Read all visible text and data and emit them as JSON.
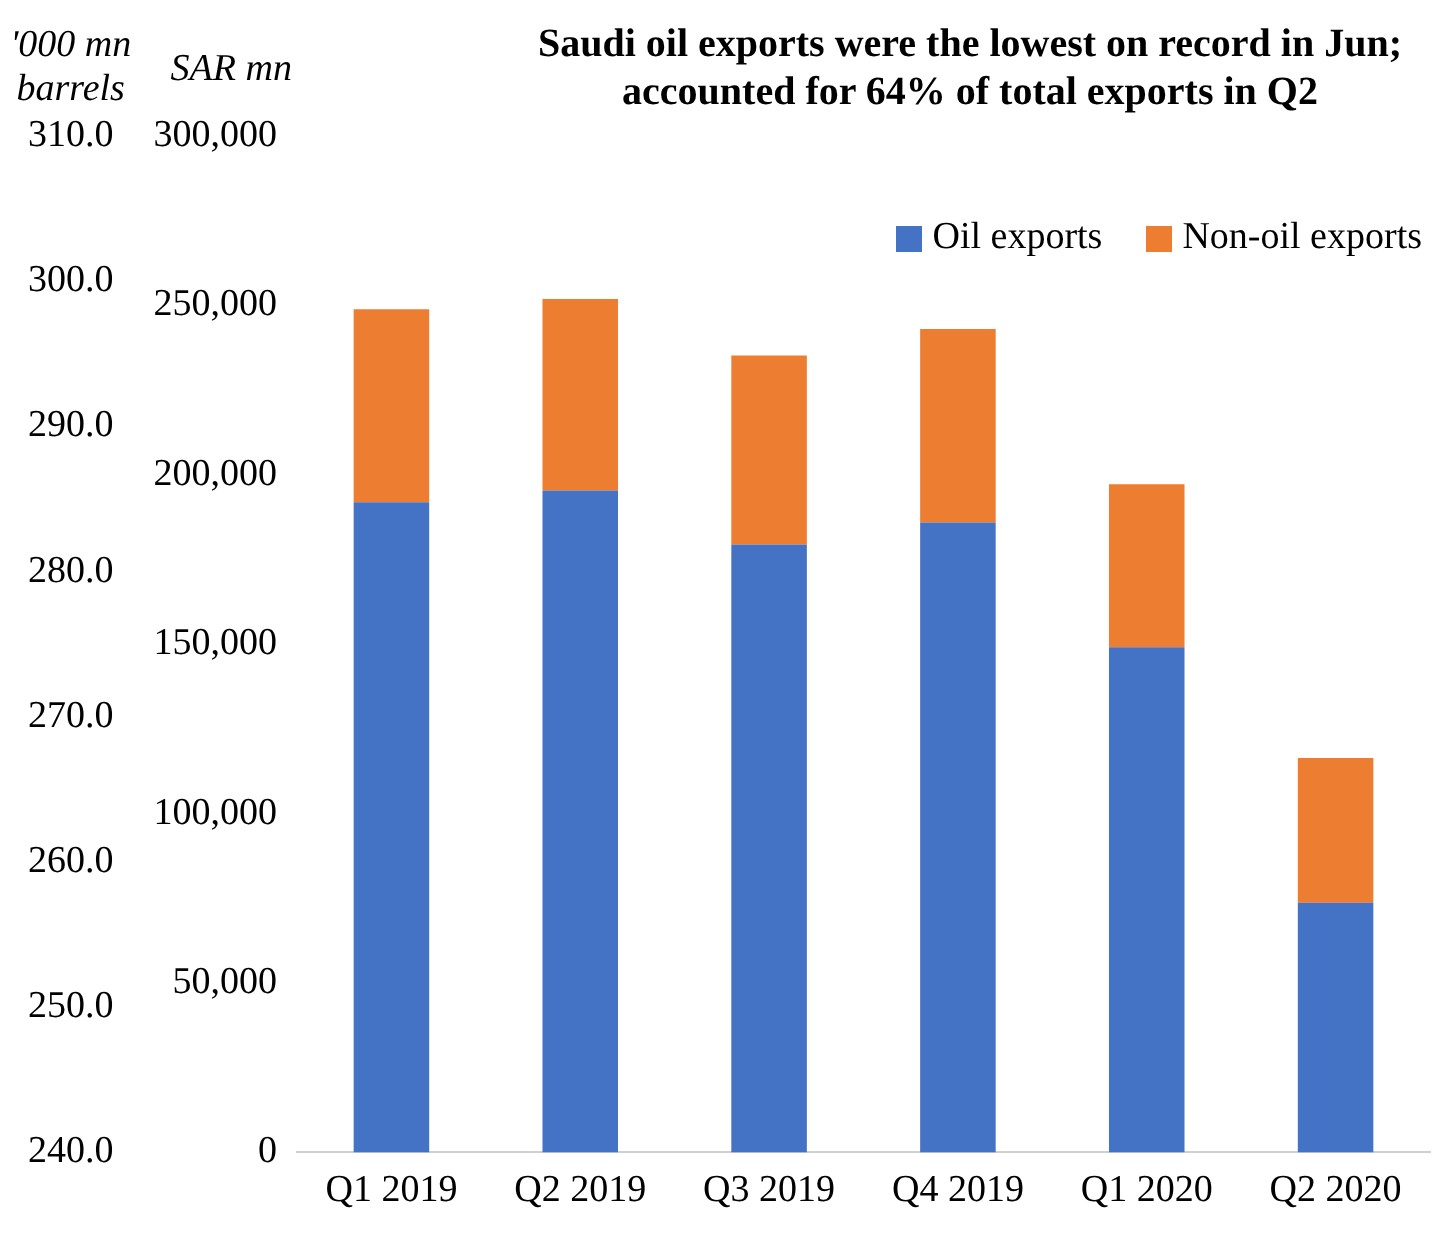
{
  "chart_data": {
    "type": "bar",
    "title": "Saudi oil exports were the lowest on record in Jun; accounted for 64% of total exports in Q2",
    "ylabel": "SAR mn",
    "y2label": "'000 mn barrels",
    "categories": [
      "Q1 2019",
      "Q2 2019",
      "Q3 2019",
      "Q4 2019",
      "Q1 2020",
      "Q2 2020"
    ],
    "stacked": true,
    "series": [
      {
        "name": "Oil exports",
        "color": "#4472c4",
        "values": [
          191900,
          195400,
          179400,
          185900,
          149100,
          73700
        ]
      },
      {
        "name": "Non-oil exports",
        "color": "#ed7d31",
        "values": [
          57000,
          56500,
          55800,
          57100,
          48100,
          42700
        ]
      }
    ],
    "ylim": [
      0,
      300000
    ],
    "yticks": [
      {
        "value": 0,
        "label": "0"
      },
      {
        "value": 50000,
        "label": "50,000"
      },
      {
        "value": 100000,
        "label": "100,000"
      },
      {
        "value": 150000,
        "label": "150,000"
      },
      {
        "value": 200000,
        "label": "200,000"
      },
      {
        "value": 250000,
        "label": "250,000"
      },
      {
        "value": 300000,
        "label": "300,000"
      }
    ],
    "y2lim": [
      240,
      310
    ],
    "y2ticks": [
      {
        "value": 240,
        "label": "240.0"
      },
      {
        "value": 250,
        "label": "250.0"
      },
      {
        "value": 260,
        "label": "260.0"
      },
      {
        "value": 270,
        "label": "270.0"
      },
      {
        "value": 280,
        "label": "280.0"
      },
      {
        "value": 290,
        "label": "290.0"
      },
      {
        "value": 300,
        "label": "300.0"
      },
      {
        "value": 310,
        "label": "310.0"
      }
    ],
    "grid": false,
    "legend": "top right"
  }
}
